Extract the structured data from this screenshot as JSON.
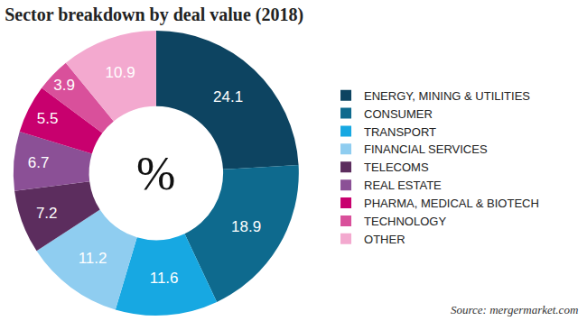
{
  "chart_data": {
    "type": "pie",
    "title": "Sector breakdown by deal value (2018)",
    "center_text": "%",
    "source": "Source: mergermarket.com",
    "categories": [
      "ENERGY, MINING & UTILITIES",
      "CONSUMER",
      "TRANSPORT",
      "FINANCIAL SERVICES",
      "TELECOMS",
      "REAL ESTATE",
      "PHARMA, MEDICAL & BIOTECH",
      "TECHNOLOGY",
      "OTHER"
    ],
    "values": [
      24.1,
      18.9,
      11.6,
      11.2,
      7.2,
      6.7,
      5.5,
      3.9,
      10.9
    ],
    "colors": [
      "#0d4461",
      "#0e6a8e",
      "#17a8e2",
      "#8fcdf0",
      "#5c2d5e",
      "#8b5096",
      "#c8006e",
      "#d9509b",
      "#f3a9cf"
    ],
    "data_labels": true,
    "legend": "right"
  }
}
